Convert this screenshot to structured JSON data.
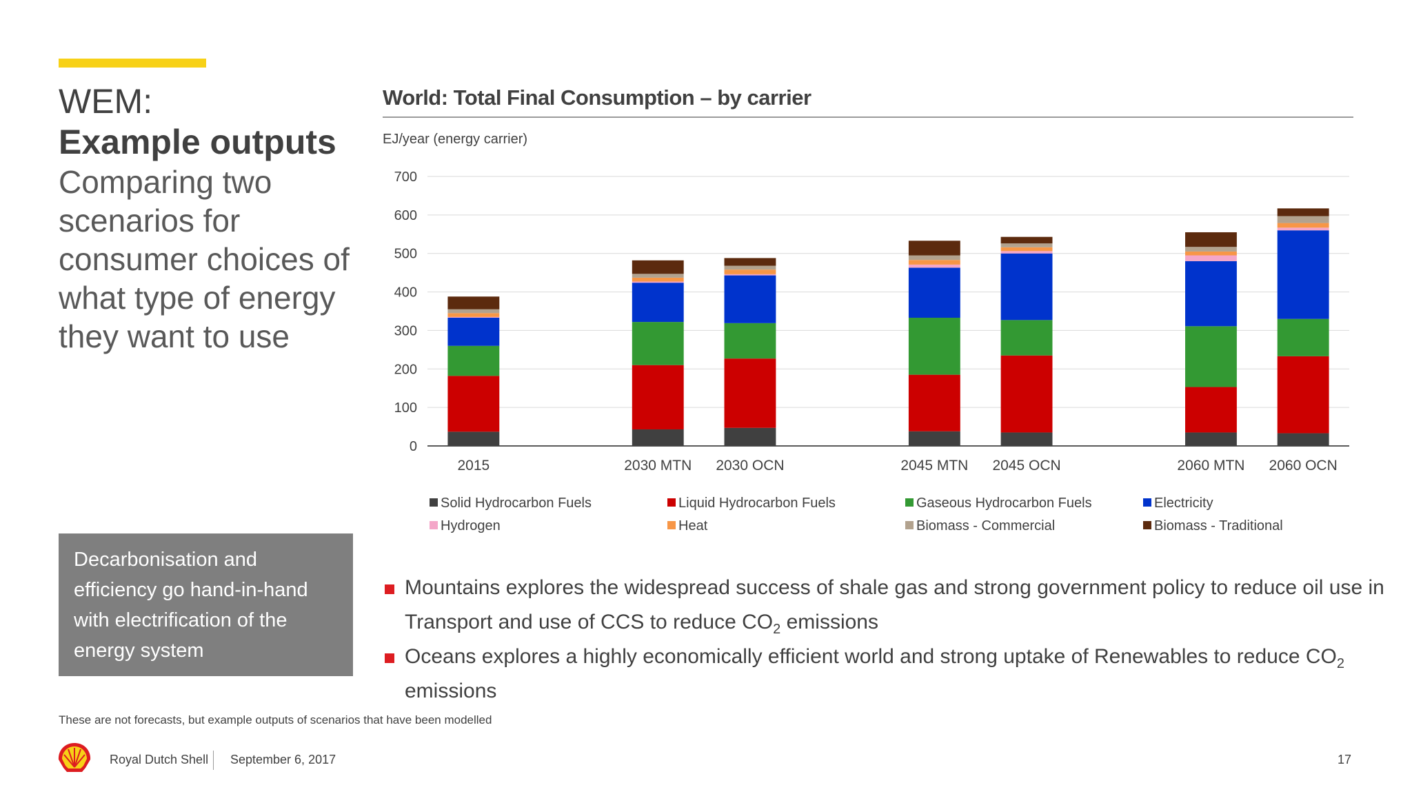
{
  "slide": {
    "title_line1": "WEM:",
    "title_line2": "Example outputs",
    "title_desc": "Comparing two scenarios for consumer choices of what type of energy they want to use",
    "callout": "Decarbonisation and efficiency go hand-in-hand with electrification of the energy system",
    "chart_title": "World: Total Final Consumption – by carrier",
    "bullets": [
      {
        "pre": "Mountains explores the widespread success of shale gas and strong government policy to reduce oil use in Transport and use of CCS to reduce CO",
        "sub": "2",
        "post": " emissions"
      },
      {
        "pre": "Oceans explores a highly economically efficient world and strong uptake of Renewables to reduce CO",
        "sub": "2",
        "post": " emissions"
      }
    ],
    "disclaimer": "These are not forecasts, but example outputs of scenarios that have been modelled",
    "footer_company": "Royal Dutch Shell",
    "footer_date": "September 6, 2017",
    "page_number": "17",
    "accent_color": "#f7d117",
    "bullet_color": "#dd1d21",
    "logo_icon": "shell-pecten-icon"
  },
  "chart_data": {
    "type": "bar",
    "stacked": true,
    "title": "World: Total Final Consumption – by carrier",
    "ylabel": "EJ/year (energy carrier)",
    "xlabel": "",
    "ylim": [
      0,
      700
    ],
    "yticks": [
      0,
      100,
      200,
      300,
      400,
      500,
      600,
      700
    ],
    "grid": true,
    "legend_position": "bottom",
    "categories": [
      "2015",
      "2030 MTN",
      "2030 OCN",
      "2045 MTN",
      "2045 OCN",
      "2060 MTN",
      "2060 OCN"
    ],
    "group_break_after": [
      0,
      2,
      4
    ],
    "series": [
      {
        "name": "Solid Hydrocarbon Fuels",
        "color": "#404040",
        "values": [
          37,
          43,
          47,
          38,
          35,
          35,
          33
        ]
      },
      {
        "name": "Liquid Hydrocarbon Fuels",
        "color": "#cc0000",
        "values": [
          145,
          167,
          180,
          147,
          200,
          118,
          200
        ]
      },
      {
        "name": "Gaseous Hydrocarbon Fuels",
        "color": "#339933",
        "values": [
          78,
          112,
          92,
          148,
          92,
          158,
          97
        ]
      },
      {
        "name": "Electricity",
        "color": "#0033cc",
        "values": [
          73,
          102,
          124,
          130,
          173,
          169,
          230
        ]
      },
      {
        "name": "Hydrogen",
        "color": "#f4a6c8",
        "values": [
          2,
          3,
          3,
          8,
          6,
          15,
          7
        ]
      },
      {
        "name": "Heat",
        "color": "#f79646",
        "values": [
          10,
          10,
          12,
          12,
          10,
          10,
          12
        ]
      },
      {
        "name": "Biomass - Commercial",
        "color": "#b2a28e",
        "values": [
          10,
          10,
          10,
          12,
          10,
          12,
          18
        ]
      },
      {
        "name": "Biomass - Traditional",
        "color": "#5c2a0e",
        "values": [
          33,
          35,
          20,
          38,
          17,
          38,
          20
        ]
      }
    ]
  }
}
